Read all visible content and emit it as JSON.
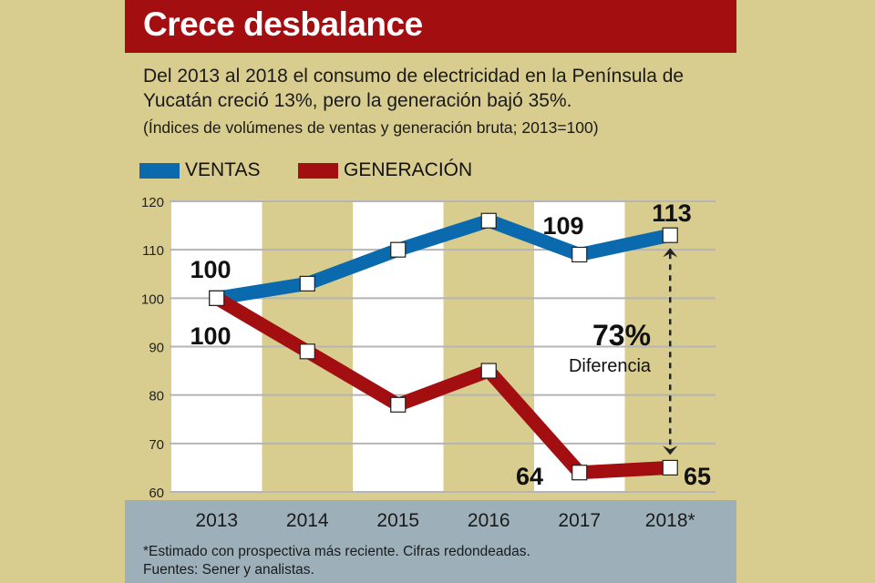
{
  "title": "Crece desbalance",
  "subtitle": "Del 2013 al 2018 el consumo de electricidad en la Península de Yucatán creció 13%, pero la generación bajó 35%.",
  "note": "(Índices de volúmenes de ventas y generación bruta; 2013=100)",
  "footnotes": [
    "*Estimado con prospectiva más reciente. Cifras redondeadas.",
    "Fuentes: Sener y analistas."
  ],
  "colors": {
    "background": "#d8cd8f",
    "title_bar": "#a30e10",
    "ventas": "#0a6aad",
    "generacion": "#a30e10",
    "bottom_band": "#9db0ba"
  },
  "chart_data": {
    "type": "line",
    "categories": [
      "2013",
      "2014",
      "2015",
      "2016",
      "2017",
      "2018*"
    ],
    "series": [
      {
        "name": "VENTAS",
        "color": "#0a6aad",
        "values": [
          100,
          103,
          110,
          116,
          109,
          113
        ]
      },
      {
        "name": "GENERACIÓN",
        "color": "#a30e10",
        "values": [
          100,
          89,
          78,
          85,
          64,
          65
        ]
      }
    ],
    "data_labels": [
      {
        "series": "VENTAS",
        "category": "2013",
        "text": "100"
      },
      {
        "series": "GENERACIÓN",
        "category": "2013",
        "text": "100"
      },
      {
        "series": "VENTAS",
        "category": "2017",
        "text": "109"
      },
      {
        "series": "VENTAS",
        "category": "2018*",
        "text": "113"
      },
      {
        "series": "GENERACIÓN",
        "category": "2017",
        "text": "64"
      },
      {
        "series": "GENERACIÓN",
        "category": "2018*",
        "text": "65"
      }
    ],
    "annotation": {
      "value": "73%",
      "label": "Diferencia"
    },
    "yticks": [
      "60",
      "70",
      "80",
      "90",
      "100",
      "110",
      "120"
    ],
    "ylim": [
      60,
      120
    ],
    "grid": true,
    "legend": "top-left"
  }
}
